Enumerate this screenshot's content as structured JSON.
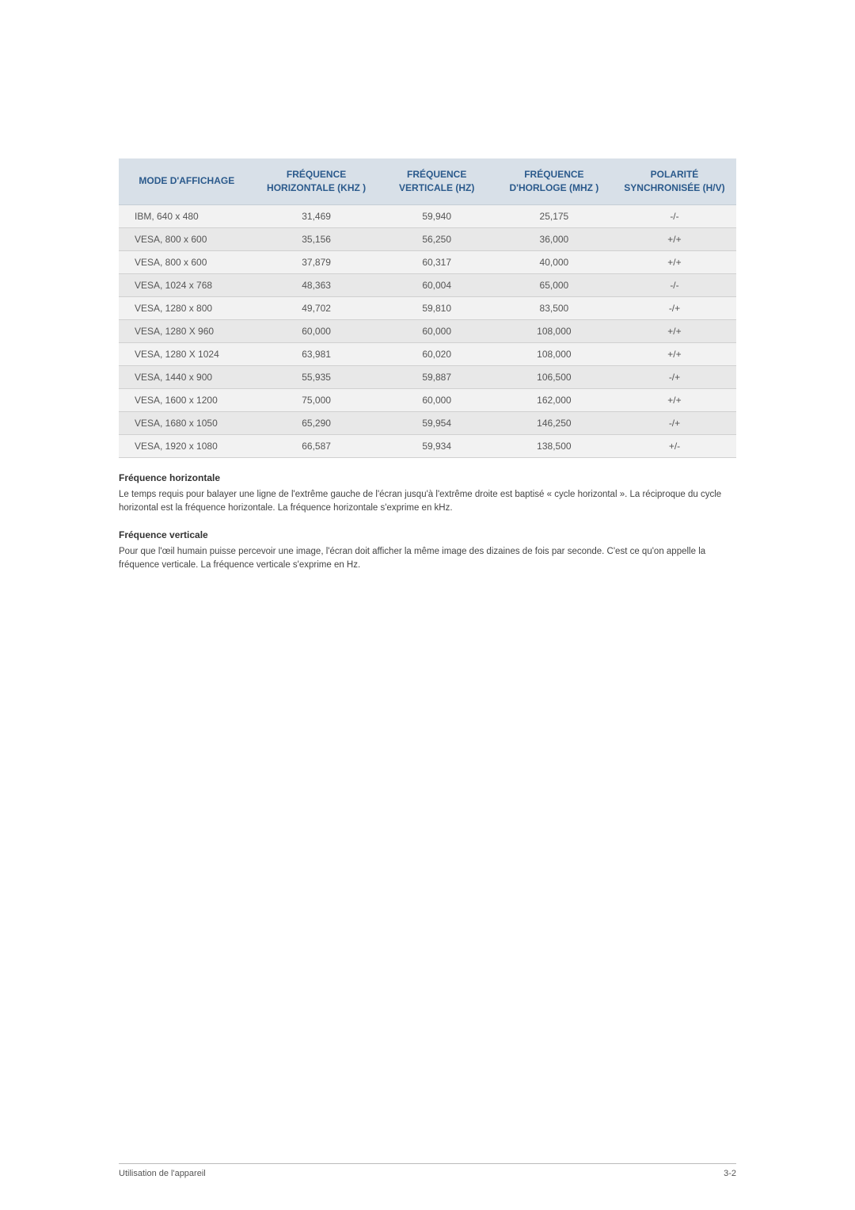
{
  "table": {
    "headers": {
      "col1": "MODE D'AFFICHAGE",
      "col2": "FRÉQUENCE HORIZONTALE (KHZ )",
      "col3": "FRÉQUENCE VERTICALE (HZ)",
      "col4": "FRÉQUENCE D'HORLOGE (MHZ )",
      "col5": "POLARITÉ SYNCHRONISÉE (H/V)"
    },
    "rows": [
      {
        "c1": "IBM, 640 x 480",
        "c2": "31,469",
        "c3": "59,940",
        "c4": "25,175",
        "c5": "-/-"
      },
      {
        "c1": "VESA, 800 x 600",
        "c2": "35,156",
        "c3": "56,250",
        "c4": "36,000",
        "c5": "+/+"
      },
      {
        "c1": "VESA, 800 x 600",
        "c2": "37,879",
        "c3": "60,317",
        "c4": "40,000",
        "c5": "+/+"
      },
      {
        "c1": "VESA, 1024 x 768",
        "c2": "48,363",
        "c3": "60,004",
        "c4": "65,000",
        "c5": "-/-"
      },
      {
        "c1": "VESA, 1280 x 800",
        "c2": "49,702",
        "c3": "59,810",
        "c4": "83,500",
        "c5": "-/+"
      },
      {
        "c1": "VESA, 1280 X 960",
        "c2": "60,000",
        "c3": "60,000",
        "c4": "108,000",
        "c5": "+/+"
      },
      {
        "c1": "VESA, 1280 X 1024",
        "c2": "63,981",
        "c3": "60,020",
        "c4": "108,000",
        "c5": "+/+"
      },
      {
        "c1": "VESA, 1440 x 900",
        "c2": "55,935",
        "c3": "59,887",
        "c4": "106,500",
        "c5": "-/+"
      },
      {
        "c1": "VESA, 1600 x 1200",
        "c2": "75,000",
        "c3": "60,000",
        "c4": "162,000",
        "c5": "+/+"
      },
      {
        "c1": "VESA, 1680 x 1050",
        "c2": "65,290",
        "c3": "59,954",
        "c4": "146,250",
        "c5": "-/+"
      },
      {
        "c1": "VESA, 1920 x 1080",
        "c2": "66,587",
        "c3": "59,934",
        "c4": "138,500",
        "c5": "+/-"
      }
    ]
  },
  "sections": {
    "h1_title": "Fréquence horizontale",
    "h1_text": "Le temps requis pour balayer une ligne de l'extrême gauche de l'écran jusqu'à l'extrême droite est baptisé « cycle horizontal ». La réciproque du cycle horizontal est la fréquence horizontale. La fréquence horizontale s'exprime en kHz.",
    "h2_title": "Fréquence verticale",
    "h2_text": "Pour que l'œil humain puisse percevoir une image, l'écran doit afficher la même image des dizaines de fois par seconde. C'est ce qu'on appelle la fréquence verticale. La fréquence verticale s'exprime en Hz."
  },
  "footer": {
    "left": "Utilisation de l'appareil",
    "right": "3-2"
  }
}
